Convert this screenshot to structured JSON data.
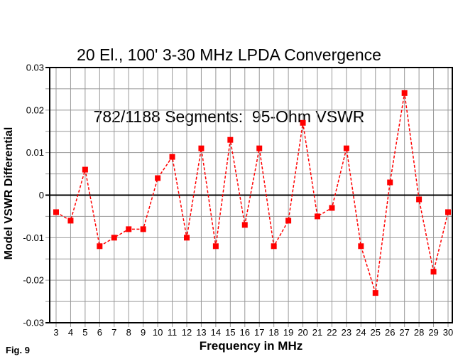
{
  "figure": {
    "title_line1": "20 El., 100' 3-30 MHz LPDA Convergence",
    "title_line2": "782/1188 Segments:  95-Ohm VSWR",
    "caption": "Fig. 9"
  },
  "chart_data": {
    "type": "line",
    "title": "20 El., 100' 3-30 MHz LPDA Convergence 782/1188 Segments: 95-Ohm VSWR",
    "xlabel": "Frequency in MHz",
    "ylabel": "Model VSWR Differential",
    "x": [
      3,
      4,
      5,
      6,
      7,
      8,
      9,
      10,
      11,
      12,
      13,
      14,
      15,
      16,
      17,
      18,
      19,
      20,
      21,
      22,
      23,
      24,
      25,
      26,
      27,
      28,
      29,
      30
    ],
    "series": [
      {
        "name": "Model VSWR Differential",
        "marker": "square",
        "values": [
          -0.004,
          -0.006,
          0.006,
          -0.012,
          -0.01,
          -0.008,
          -0.008,
          0.004,
          0.009,
          -0.01,
          0.011,
          -0.012,
          0.013,
          -0.007,
          0.011,
          -0.012,
          -0.006,
          0.017,
          -0.005,
          -0.003,
          0.011,
          -0.012,
          -0.023,
          0.003,
          0.024,
          -0.001,
          -0.018,
          -0.004
        ]
      }
    ],
    "xlim": [
      3,
      30
    ],
    "ylim": [
      -0.03,
      0.03
    ],
    "ytick_values": [
      0.03,
      0.02,
      0.01,
      0,
      -0.01,
      -0.02,
      -0.03
    ],
    "ytick_labels": [
      "0.03",
      "0.02",
      "0.01",
      "0",
      "-0.01",
      "-0.02",
      "-0.03"
    ],
    "minor_ytick_step": 0.005,
    "grid": true,
    "legend": false,
    "colors": {
      "series": "#ff0000",
      "grid": "#999999",
      "axis": "#000000",
      "zero_line": "#000000",
      "background": "#ffffff"
    }
  }
}
